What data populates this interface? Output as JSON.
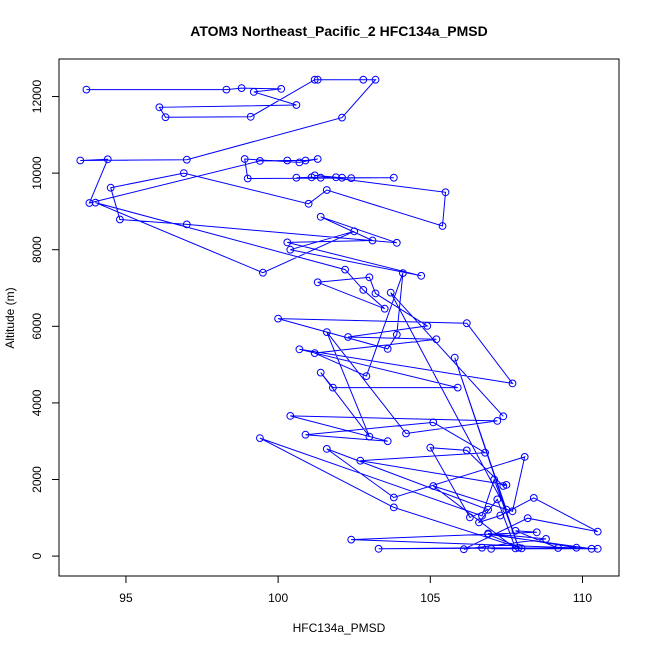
{
  "chart_data": {
    "type": "line",
    "title": "ATOM3 Northeast_Pacific_2 HFC134a_PMSD",
    "xlabel": "HFC134a_PMSD",
    "ylabel": "Altitude (m)",
    "xlim": [
      92.8,
      111.2
    ],
    "ylim": [
      -520,
      12980
    ],
    "xticks": [
      95,
      100,
      105,
      110
    ],
    "yticks": [
      0,
      2000,
      4000,
      6000,
      8000,
      10000,
      12000
    ],
    "grid": false,
    "color": "#0000ff",
    "markers": "open-circle",
    "series": [
      {
        "points": [
          [
            93.7,
            12180
          ],
          [
            98.3,
            12180
          ],
          [
            98.8,
            12220
          ],
          [
            100.1,
            12200
          ],
          [
            99.2,
            12120
          ],
          [
            100.6,
            11780
          ],
          [
            96.1,
            11720
          ],
          [
            96.3,
            11460
          ],
          [
            99.1,
            11470
          ],
          [
            101.2,
            12440
          ],
          [
            101.3,
            12440
          ],
          [
            102.8,
            12440
          ],
          [
            103.2,
            12440
          ],
          [
            102.1,
            11450
          ],
          [
            97.0,
            10350
          ],
          [
            93.5,
            10330
          ],
          [
            94.4,
            10360
          ],
          [
            93.8,
            9220
          ],
          [
            99.4,
            10320
          ],
          [
            100.3,
            10330
          ],
          [
            100.9,
            10330
          ],
          [
            101.3,
            10370
          ],
          [
            100.7,
            10280
          ],
          [
            98.9,
            10370
          ],
          [
            99.0,
            9860
          ],
          [
            103.8,
            9880
          ],
          [
            100.6,
            9880
          ],
          [
            101.1,
            9890
          ],
          [
            101.4,
            9880
          ],
          [
            102.1,
            9880
          ],
          [
            102.4,
            9870
          ],
          [
            101.9,
            9890
          ],
          [
            101.2,
            9940
          ],
          [
            105.5,
            9500
          ],
          [
            105.4,
            8620
          ],
          [
            101.6,
            9560
          ],
          [
            101.0,
            9200
          ],
          [
            96.9,
            10000
          ],
          [
            94.5,
            9620
          ],
          [
            94.8,
            8790
          ],
          [
            97.0,
            8660
          ],
          [
            103.9,
            8180
          ],
          [
            101.4,
            8860
          ],
          [
            103.1,
            8240
          ],
          [
            100.3,
            8190
          ],
          [
            104.7,
            7320
          ],
          [
            100.4,
            8000
          ],
          [
            102.5,
            8480
          ],
          [
            99.5,
            7400
          ],
          [
            94.0,
            9230
          ],
          [
            102.2,
            7480
          ],
          [
            102.8,
            6950
          ],
          [
            103.5,
            6460
          ],
          [
            101.3,
            7150
          ],
          [
            103.0,
            7280
          ],
          [
            103.2,
            6860
          ],
          [
            104.9,
            6010
          ],
          [
            102.3,
            5720
          ],
          [
            105.2,
            5660
          ],
          [
            101.2,
            5300
          ],
          [
            102.9,
            4700
          ],
          [
            104.1,
            7390
          ],
          [
            103.9,
            5780
          ],
          [
            103.6,
            5410
          ],
          [
            100.0,
            6200
          ],
          [
            106.2,
            6080
          ],
          [
            107.7,
            4510
          ],
          [
            100.7,
            5400
          ],
          [
            105.9,
            4400
          ],
          [
            101.8,
            4400
          ],
          [
            101.4,
            4790
          ],
          [
            103.0,
            3120
          ],
          [
            101.6,
            5850
          ],
          [
            104.2,
            3200
          ],
          [
            107.2,
            3530
          ],
          [
            100.4,
            3660
          ],
          [
            103.6,
            3000
          ],
          [
            100.9,
            3170
          ],
          [
            105.1,
            3490
          ],
          [
            106.8,
            2700
          ],
          [
            102.7,
            2490
          ],
          [
            107.5,
            1860
          ],
          [
            107.4,
            1830
          ],
          [
            106.2,
            2760
          ],
          [
            105.0,
            2830
          ],
          [
            106.3,
            1010
          ],
          [
            106.9,
            1210
          ],
          [
            101.6,
            2800
          ],
          [
            103.8,
            1530
          ],
          [
            108.1,
            2590
          ],
          [
            107.7,
            1170
          ],
          [
            105.1,
            1830
          ],
          [
            107.8,
            200
          ],
          [
            107.2,
            1480
          ],
          [
            106.6,
            880
          ],
          [
            107.3,
            1060
          ],
          [
            108.4,
            1520
          ],
          [
            110.5,
            640
          ],
          [
            108.2,
            990
          ],
          [
            106.1,
            180
          ],
          [
            108.8,
            450
          ],
          [
            106.9,
            590
          ],
          [
            109.8,
            220
          ],
          [
            103.3,
            190
          ],
          [
            106.7,
            220
          ],
          [
            110.5,
            190
          ],
          [
            102.4,
            430
          ],
          [
            108.5,
            620
          ],
          [
            107.8,
            660
          ],
          [
            109.2,
            210
          ],
          [
            107.0,
            190
          ],
          [
            110.3,
            190
          ],
          [
            106.9,
            570
          ],
          [
            108.0,
            200
          ],
          [
            103.8,
            1270
          ],
          [
            99.4,
            3080
          ],
          [
            106.7,
            1050
          ],
          [
            107.1,
            2000
          ],
          [
            107.9,
            220
          ],
          [
            105.8,
            5180
          ],
          [
            107.5,
            1210
          ],
          [
            103.7,
            6880
          ],
          [
            107.4,
            3650
          ]
        ]
      }
    ]
  }
}
